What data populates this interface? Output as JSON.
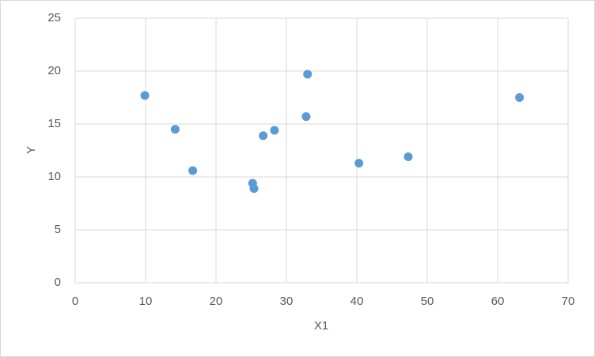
{
  "chart_data": {
    "type": "scatter",
    "x_label": "X1",
    "y_label": "Y",
    "series": [
      {
        "name": "Y",
        "color": "#5b9bd5",
        "x": [
          9.9,
          14.2,
          16.7,
          25.2,
          25.4,
          26.7,
          28.3,
          33.0,
          32.8,
          40.3,
          47.3,
          63.1
        ],
        "values": [
          17.7,
          14.5,
          10.6,
          9.4,
          8.9,
          13.9,
          14.4,
          19.7,
          15.7,
          11.3,
          11.9,
          17.5
        ]
      }
    ],
    "xlim": [
      0,
      70
    ],
    "xticks": [
      0,
      10,
      20,
      30,
      40,
      50,
      60,
      70
    ],
    "ylim": [
      0,
      25
    ],
    "yticks": [
      0,
      5,
      10,
      15,
      20,
      25
    ],
    "grid": true
  }
}
